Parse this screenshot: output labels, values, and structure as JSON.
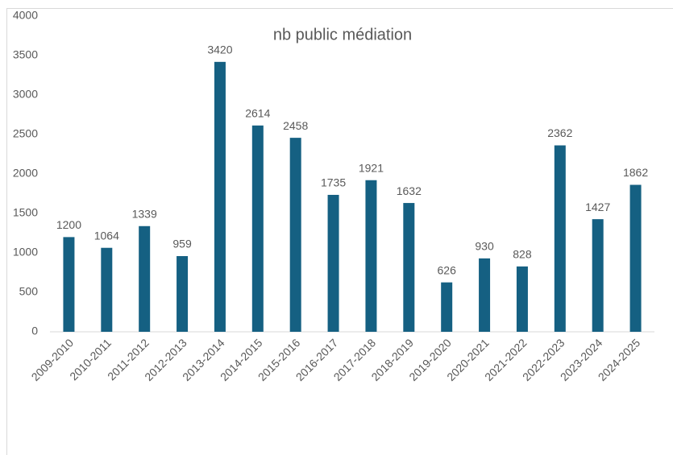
{
  "chart_data": {
    "type": "bar",
    "title": "nb public médiation",
    "categories": [
      "2009-2010",
      "2010-2011",
      "2011-2012",
      "2012-2013",
      "2013-2014",
      "2014-2015",
      "2015-2016",
      "2016-2017",
      "2017-2018",
      "2018-2019",
      "2019-2020",
      "2020-2021",
      "2021-2022",
      "2022-2023",
      "2023-2024",
      "2024-2025"
    ],
    "values": [
      1200,
      1064,
      1339,
      959,
      3420,
      2614,
      2458,
      1735,
      1921,
      1632,
      626,
      930,
      828,
      2362,
      1427,
      1862
    ],
    "color": "#156082",
    "ylim": [
      0,
      4000
    ],
    "yticks": [
      0,
      500,
      1000,
      1500,
      2000,
      2500,
      3000,
      3500,
      4000
    ],
    "grid": false
  }
}
